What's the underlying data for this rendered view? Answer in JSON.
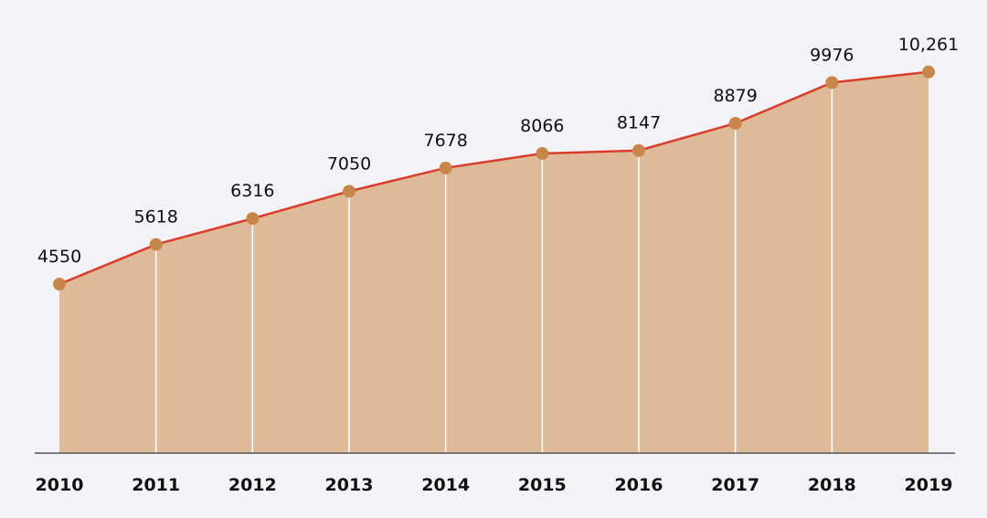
{
  "colors": {
    "background": "#f3f2f6",
    "area_fill": "#dfba98",
    "line": "#d83c2c",
    "marker": "#c8874a",
    "axis": "#555555",
    "dividers": "#ffffff"
  },
  "chart_data": {
    "type": "area",
    "categories": [
      "2010",
      "2011",
      "2012",
      "2013",
      "2014",
      "2015",
      "2016",
      "2017",
      "2018",
      "2019"
    ],
    "series": [
      {
        "values": [
          4550,
          5618,
          6316,
          7050,
          7678,
          8066,
          8147,
          8879,
          9976,
          10261
        ]
      }
    ],
    "data_labels": [
      "4550",
      "5618",
      "6316",
      "7050",
      "7678",
      "8066",
      "8147",
      "8879",
      "9976",
      "10,261"
    ],
    "title": "",
    "xlabel": "",
    "ylabel": "",
    "ylim": [
      0,
      12000
    ],
    "grid": false,
    "markers": true,
    "vertical_dividers": true
  }
}
